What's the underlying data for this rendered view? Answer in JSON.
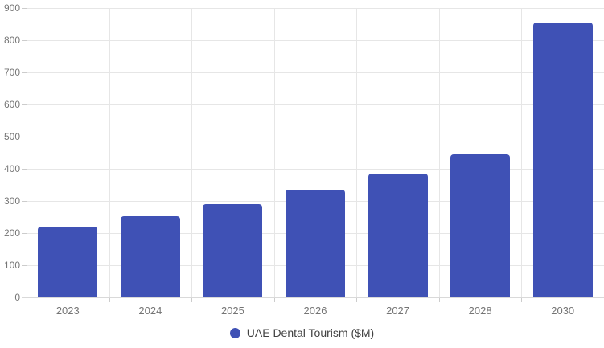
{
  "chart_data": {
    "type": "bar",
    "title": "",
    "xlabel": "",
    "ylabel": "",
    "categories": [
      "2023",
      "2024",
      "2025",
      "2026",
      "2027",
      "2028",
      "2030"
    ],
    "values": [
      220,
      253,
      290,
      335,
      385,
      445,
      855
    ],
    "series_name": "UAE Dental Tourism ($M)",
    "ylim": [
      0,
      900
    ],
    "ytick_step": 100,
    "yticks": [
      0,
      100,
      200,
      300,
      400,
      500,
      600,
      700,
      800,
      900
    ],
    "grid": true,
    "legend_position": "bottom-center",
    "colors": {
      "bar": "#3F51B5",
      "legend_marker": "#3F51B5",
      "axis_label": "#757575",
      "legend_text": "#424242",
      "gridline": "#E6E6E6",
      "tick": "#CCCCCC",
      "axis_line": "#D9D9D9",
      "background": "#FFFFFF"
    }
  }
}
